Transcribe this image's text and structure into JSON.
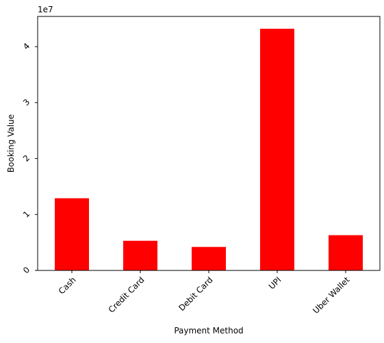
{
  "chart_data": {
    "type": "bar",
    "categories": [
      "Cash",
      "Credit Card",
      "Debit Card",
      "UPI",
      "Uber Wallet"
    ],
    "values": [
      12900000,
      5300000,
      4200000,
      43200000,
      6300000
    ],
    "title": "",
    "xlabel": "Payment Method",
    "ylabel": "Booking Value",
    "ylim": [
      0,
      45400000
    ],
    "yticks": [
      0,
      10000000,
      20000000,
      30000000,
      40000000
    ],
    "ytick_labels": [
      "0",
      "1",
      "2",
      "3",
      "4"
    ],
    "y_offset_label": "1e7",
    "bar_color": "#ff0000",
    "grid": false,
    "xtick_rotation": 45,
    "ytick_rotation": 45
  }
}
